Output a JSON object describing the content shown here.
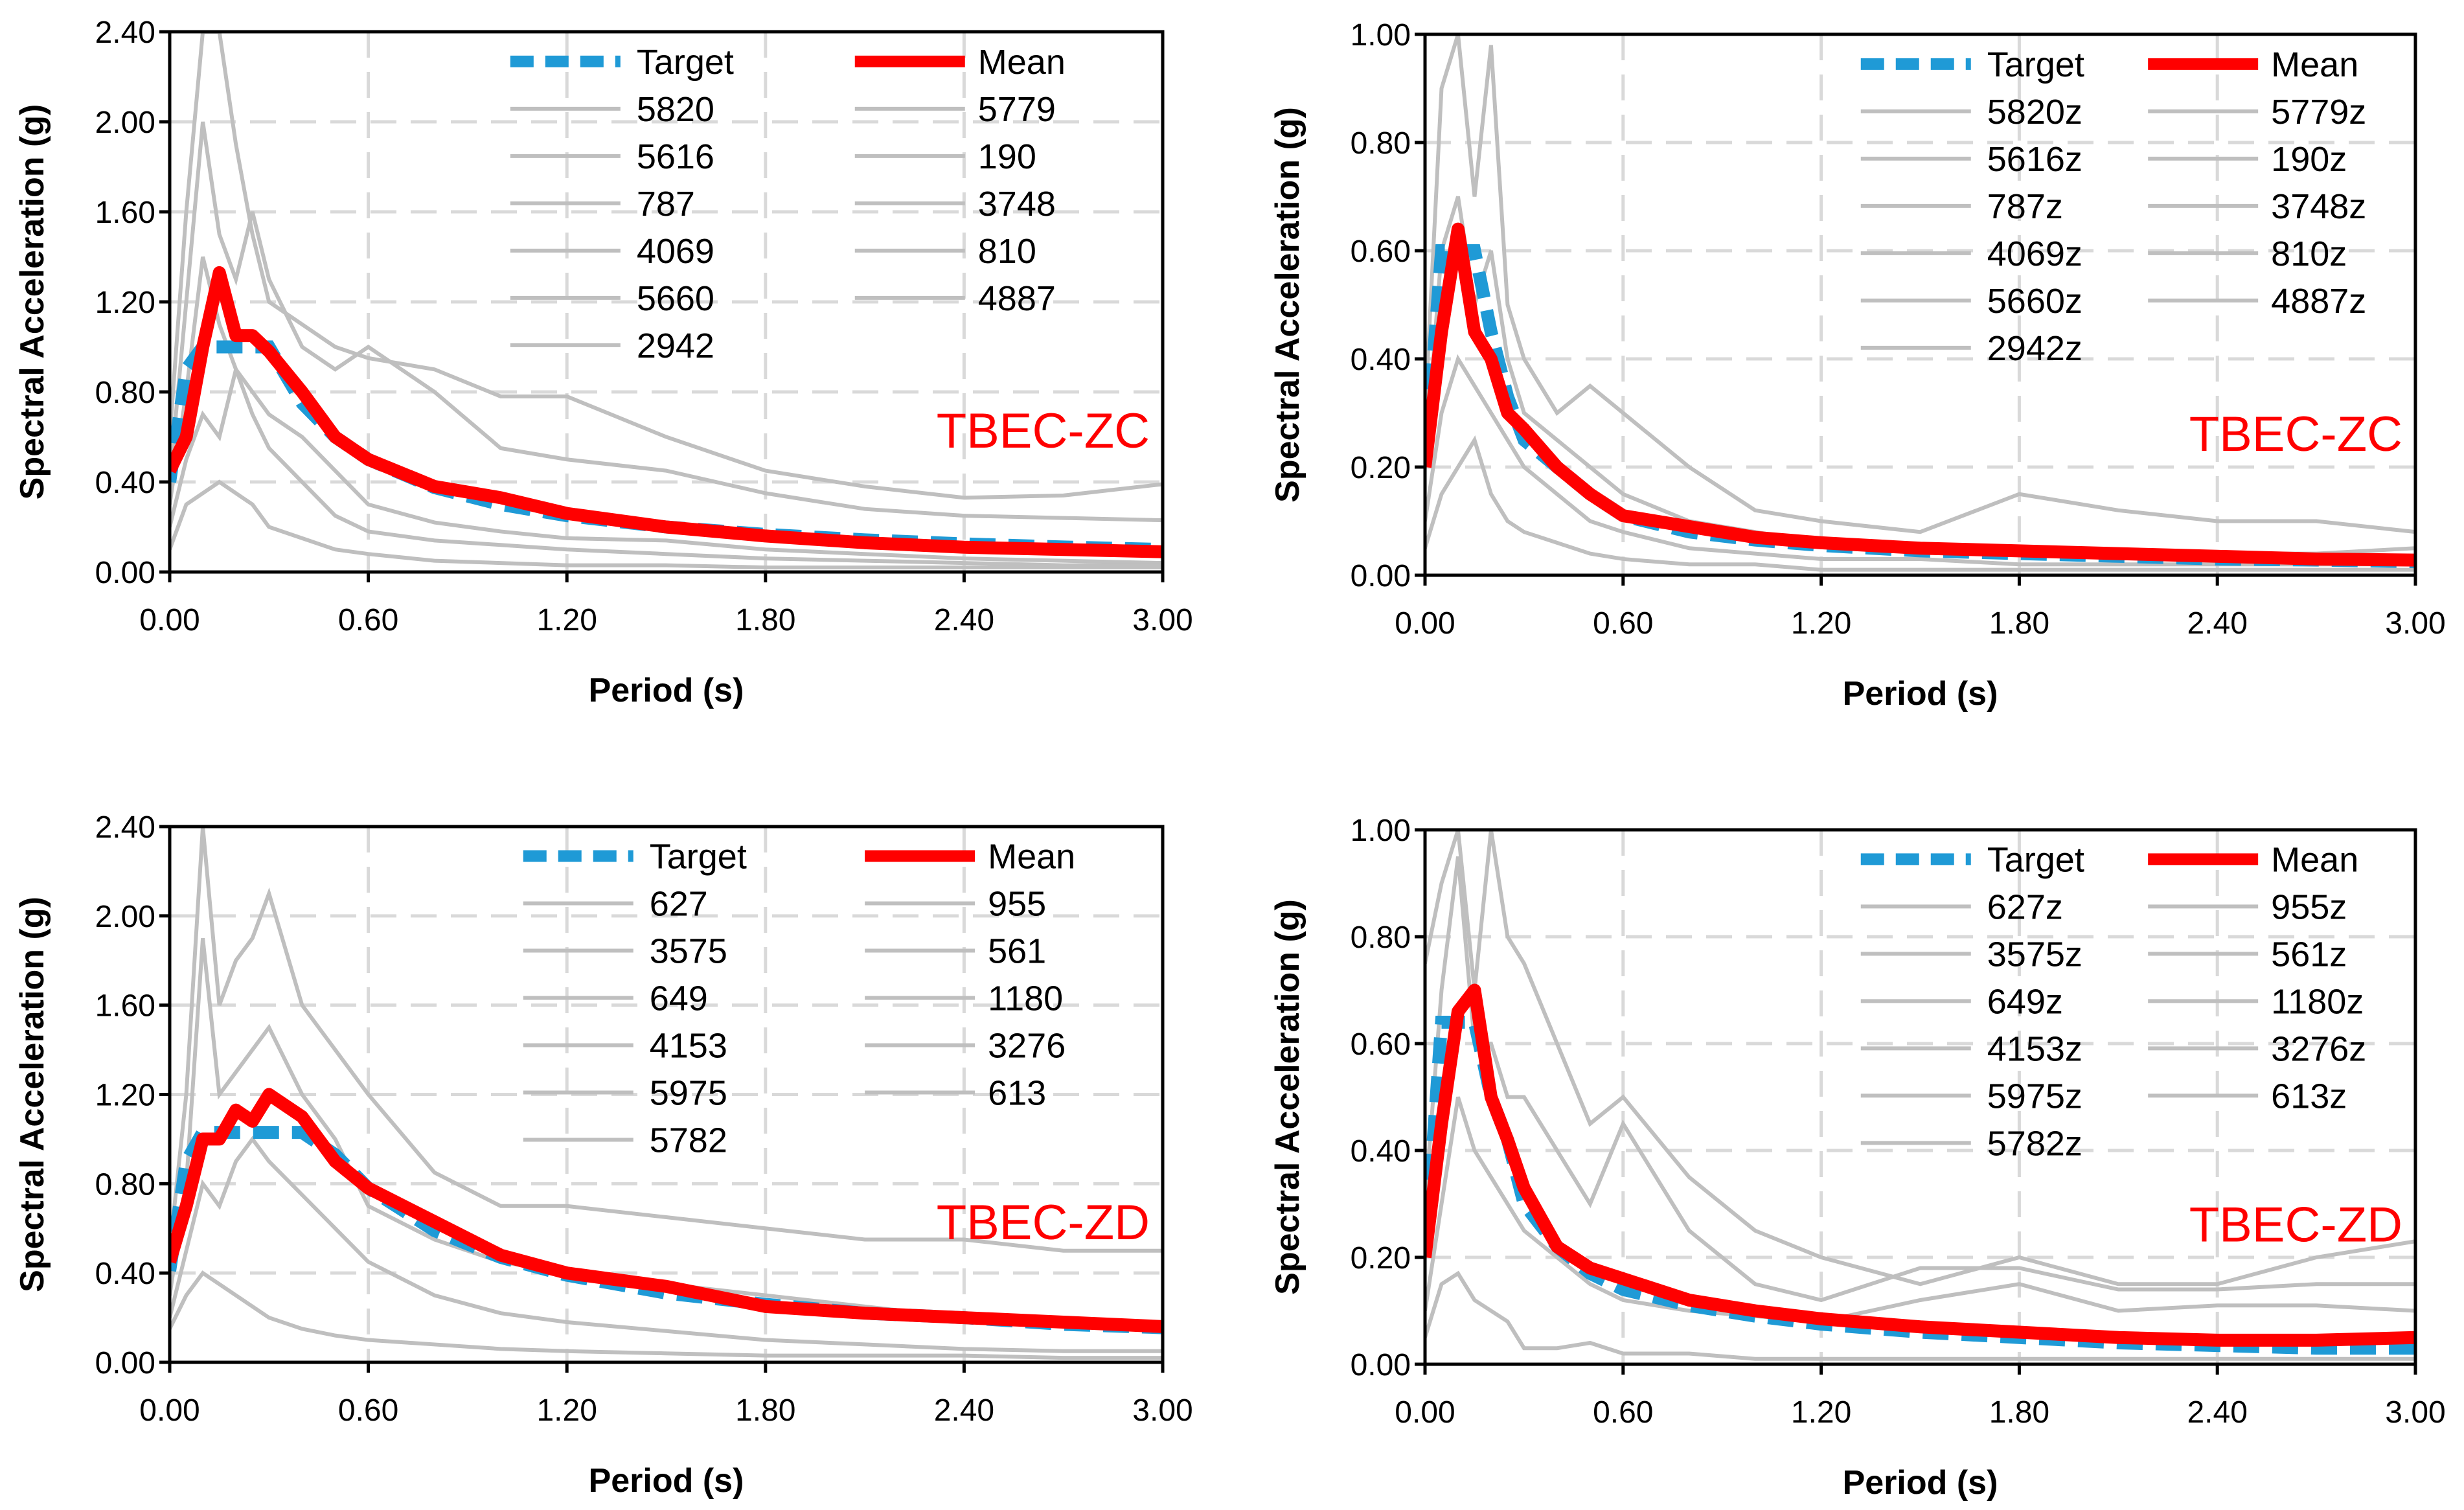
{
  "chart_data": [
    {
      "type": "line",
      "panel_label": "TBEC-ZC",
      "xlabel": "Period (s)",
      "ylabel": "Spectral Acceleration (g)",
      "xlim": [
        0,
        3.0
      ],
      "ylim": [
        0,
        2.4
      ],
      "xticks": [
        "0.00",
        "0.60",
        "1.20",
        "1.80",
        "2.40",
        "3.00"
      ],
      "yticks": [
        "0.00",
        "0.40",
        "0.80",
        "1.20",
        "1.60",
        "2.00",
        "2.40"
      ],
      "grid": true,
      "legend_position": "top-right",
      "legend": {
        "target": "Target",
        "mean": "Mean",
        "records": [
          "5820",
          "5779",
          "5616",
          "190",
          "787",
          "3748",
          "4069",
          "810",
          "5660",
          "4887",
          "2942"
        ]
      },
      "x": [
        0,
        0.05,
        0.1,
        0.15,
        0.2,
        0.25,
        0.3,
        0.4,
        0.5,
        0.6,
        0.8,
        1.0,
        1.2,
        1.5,
        1.8,
        2.1,
        2.4,
        2.7,
        3.0
      ],
      "series": [
        {
          "name": "Target",
          "values": [
            0.4,
            0.9,
            1.0,
            1.0,
            1.0,
            1.0,
            1.0,
            0.75,
            0.6,
            0.5,
            0.375,
            0.3,
            0.25,
            0.2,
            0.167,
            0.143,
            0.125,
            0.111,
            0.1
          ]
        },
        {
          "name": "Mean",
          "values": [
            0.45,
            0.6,
            1.0,
            1.33,
            1.05,
            1.05,
            0.98,
            0.8,
            0.6,
            0.5,
            0.38,
            0.33,
            0.26,
            0.2,
            0.16,
            0.13,
            0.11,
            0.1,
            0.09
          ]
        }
      ],
      "records_approx": [
        [
          0.6,
          1.6,
          2.4,
          2.4,
          1.9,
          1.5,
          1.2,
          1.1,
          1.0,
          0.95,
          0.9,
          0.78,
          0.78,
          0.6,
          0.45,
          0.38,
          0.33,
          0.34,
          0.39
        ],
        [
          0.4,
          1.2,
          2.0,
          1.5,
          1.3,
          1.6,
          1.3,
          1.0,
          0.9,
          1.0,
          0.8,
          0.55,
          0.5,
          0.45,
          0.35,
          0.28,
          0.25,
          0.24,
          0.23
        ],
        [
          0.3,
          0.8,
          1.4,
          1.1,
          0.9,
          0.8,
          0.7,
          0.6,
          0.45,
          0.3,
          0.22,
          0.18,
          0.15,
          0.14,
          0.1,
          0.08,
          0.06,
          0.05,
          0.04
        ],
        [
          0.1,
          0.3,
          0.35,
          0.4,
          0.35,
          0.3,
          0.2,
          0.15,
          0.1,
          0.08,
          0.05,
          0.04,
          0.03,
          0.03,
          0.02,
          0.02,
          0.02,
          0.02,
          0.02
        ],
        [
          0.2,
          0.5,
          0.7,
          0.6,
          0.9,
          0.7,
          0.55,
          0.4,
          0.25,
          0.18,
          0.14,
          0.12,
          0.1,
          0.08,
          0.06,
          0.05,
          0.04,
          0.03,
          0.03
        ]
      ]
    },
    {
      "type": "line",
      "panel_label": "TBEC-ZC",
      "xlabel": "Period (s)",
      "ylabel": "Spectral Acceleration (g)",
      "xlim": [
        0,
        3.0
      ],
      "ylim": [
        0,
        1.0
      ],
      "xticks": [
        "0.00",
        "0.60",
        "1.20",
        "1.80",
        "2.40",
        "3.00"
      ],
      "yticks": [
        "0.00",
        "0.20",
        "0.40",
        "0.60",
        "0.80",
        "1.00"
      ],
      "grid": true,
      "legend_position": "top-right",
      "legend": {
        "target": "Target",
        "mean": "Mean",
        "records": [
          "5820z",
          "5779z",
          "5616z",
          "190z",
          "787z",
          "3748z",
          "4069z",
          "810z",
          "5660z",
          "4887z",
          "2942z"
        ]
      },
      "x": [
        0,
        0.05,
        0.1,
        0.15,
        0.2,
        0.25,
        0.3,
        0.4,
        0.5,
        0.6,
        0.8,
        1.0,
        1.2,
        1.5,
        1.8,
        2.1,
        2.4,
        2.7,
        3.0
      ],
      "series": [
        {
          "name": "Target",
          "values": [
            0.2,
            0.6,
            0.6,
            0.6,
            0.45,
            0.33,
            0.25,
            0.2,
            0.15,
            0.11,
            0.08,
            0.065,
            0.055,
            0.045,
            0.04,
            0.035,
            0.03,
            0.028,
            0.025
          ]
        },
        {
          "name": "Mean",
          "values": [
            0.2,
            0.45,
            0.64,
            0.45,
            0.4,
            0.3,
            0.27,
            0.2,
            0.15,
            0.11,
            0.09,
            0.07,
            0.06,
            0.05,
            0.045,
            0.04,
            0.035,
            0.03,
            0.028
          ]
        }
      ],
      "records_approx": [
        [
          0.3,
          0.9,
          1.0,
          0.7,
          0.98,
          0.5,
          0.4,
          0.3,
          0.35,
          0.3,
          0.2,
          0.12,
          0.1,
          0.08,
          0.15,
          0.12,
          0.1,
          0.1,
          0.08
        ],
        [
          0.2,
          0.6,
          0.7,
          0.5,
          0.6,
          0.4,
          0.3,
          0.25,
          0.2,
          0.15,
          0.1,
          0.08,
          0.06,
          0.05,
          0.05,
          0.04,
          0.04,
          0.04,
          0.05
        ],
        [
          0.1,
          0.3,
          0.4,
          0.35,
          0.3,
          0.25,
          0.2,
          0.15,
          0.1,
          0.08,
          0.05,
          0.04,
          0.03,
          0.03,
          0.02,
          0.02,
          0.02,
          0.02,
          0.02
        ],
        [
          0.05,
          0.15,
          0.2,
          0.25,
          0.15,
          0.1,
          0.08,
          0.06,
          0.04,
          0.03,
          0.02,
          0.02,
          0.01,
          0.01,
          0.01,
          0.01,
          0.01,
          0.01,
          0.01
        ]
      ]
    },
    {
      "type": "line",
      "panel_label": "TBEC-ZD",
      "xlabel": "Period (s)",
      "ylabel": "Spectral Acceleration (g)",
      "xlim": [
        0,
        3.0
      ],
      "ylim": [
        0,
        2.4
      ],
      "xticks": [
        "0.00",
        "0.60",
        "1.20",
        "1.80",
        "2.40",
        "3.00"
      ],
      "yticks": [
        "0.00",
        "0.40",
        "0.80",
        "1.20",
        "1.60",
        "2.00",
        "2.40"
      ],
      "grid": true,
      "legend_position": "top-right",
      "legend": {
        "target": "Target",
        "mean": "Mean",
        "records": [
          "627",
          "955",
          "3575",
          "561",
          "649",
          "1180",
          "4153",
          "3276",
          "5975",
          "613",
          "5782"
        ]
      },
      "x": [
        0,
        0.05,
        0.1,
        0.15,
        0.2,
        0.25,
        0.3,
        0.4,
        0.5,
        0.6,
        0.8,
        1.0,
        1.2,
        1.5,
        1.8,
        2.1,
        2.4,
        2.7,
        3.0
      ],
      "series": [
        {
          "name": "Target",
          "values": [
            0.41,
            0.9,
            1.03,
            1.03,
            1.03,
            1.03,
            1.03,
            1.03,
            0.93,
            0.78,
            0.59,
            0.47,
            0.39,
            0.31,
            0.26,
            0.22,
            0.2,
            0.17,
            0.155
          ]
        },
        {
          "name": "Mean",
          "values": [
            0.45,
            0.7,
            1.0,
            1.0,
            1.13,
            1.08,
            1.2,
            1.1,
            0.9,
            0.78,
            0.63,
            0.48,
            0.4,
            0.34,
            0.25,
            0.22,
            0.2,
            0.18,
            0.16
          ]
        }
      ],
      "records_approx": [
        [
          0.5,
          1.2,
          2.4,
          1.6,
          1.8,
          1.9,
          2.1,
          1.6,
          1.4,
          1.2,
          0.85,
          0.7,
          0.7,
          0.65,
          0.6,
          0.55,
          0.55,
          0.5,
          0.5
        ],
        [
          0.3,
          0.8,
          1.9,
          1.2,
          1.3,
          1.4,
          1.5,
          1.2,
          1.0,
          0.7,
          0.55,
          0.45,
          0.4,
          0.35,
          0.3,
          0.25,
          0.2,
          0.18,
          0.15
        ],
        [
          0.2,
          0.5,
          0.8,
          0.7,
          0.9,
          1.0,
          0.9,
          0.75,
          0.6,
          0.45,
          0.3,
          0.22,
          0.18,
          0.14,
          0.1,
          0.08,
          0.06,
          0.05,
          0.05
        ],
        [
          0.15,
          0.3,
          0.4,
          0.35,
          0.3,
          0.25,
          0.2,
          0.15,
          0.12,
          0.1,
          0.08,
          0.06,
          0.05,
          0.04,
          0.03,
          0.03,
          0.03,
          0.02,
          0.02
        ]
      ]
    },
    {
      "type": "line",
      "panel_label": "TBEC-ZD",
      "xlabel": "Period (s)",
      "ylabel": "Spectral Acceleration (g)",
      "xlim": [
        0,
        3.0
      ],
      "ylim": [
        0,
        1.0
      ],
      "xticks": [
        "0.00",
        "0.60",
        "1.20",
        "1.80",
        "2.40",
        "3.00"
      ],
      "yticks": [
        "0.00",
        "0.20",
        "0.40",
        "0.60",
        "0.80",
        "1.00"
      ],
      "grid": true,
      "legend_position": "top-right",
      "legend": {
        "target": "Target",
        "mean": "Mean",
        "records": [
          "627z",
          "955z",
          "3575z",
          "561z",
          "649z",
          "1180z",
          "4153z",
          "3276z",
          "5975z",
          "613z",
          "5782z"
        ]
      },
      "x": [
        0,
        0.05,
        0.1,
        0.15,
        0.2,
        0.25,
        0.3,
        0.4,
        0.5,
        0.6,
        0.8,
        1.0,
        1.2,
        1.5,
        1.8,
        2.1,
        2.4,
        2.7,
        3.0
      ],
      "series": [
        {
          "name": "Target",
          "values": [
            0.2,
            0.64,
            0.64,
            0.64,
            0.5,
            0.42,
            0.3,
            0.22,
            0.17,
            0.14,
            0.11,
            0.09,
            0.075,
            0.06,
            0.05,
            0.04,
            0.035,
            0.03,
            0.03
          ]
        },
        {
          "name": "Mean",
          "values": [
            0.2,
            0.45,
            0.66,
            0.7,
            0.5,
            0.42,
            0.33,
            0.22,
            0.18,
            0.16,
            0.12,
            0.1,
            0.085,
            0.07,
            0.06,
            0.05,
            0.045,
            0.045,
            0.05
          ]
        }
      ],
      "records_approx": [
        [
          0.75,
          0.9,
          1.0,
          0.7,
          1.0,
          0.8,
          0.75,
          0.6,
          0.45,
          0.5,
          0.35,
          0.25,
          0.2,
          0.15,
          0.2,
          0.15,
          0.15,
          0.2,
          0.23
        ],
        [
          0.3,
          0.7,
          0.95,
          0.6,
          0.6,
          0.5,
          0.5,
          0.4,
          0.3,
          0.45,
          0.25,
          0.15,
          0.12,
          0.18,
          0.18,
          0.14,
          0.14,
          0.15,
          0.15
        ],
        [
          0.1,
          0.3,
          0.5,
          0.4,
          0.35,
          0.3,
          0.25,
          0.2,
          0.15,
          0.12,
          0.1,
          0.09,
          0.08,
          0.12,
          0.15,
          0.1,
          0.11,
          0.11,
          0.1
        ],
        [
          0.05,
          0.15,
          0.17,
          0.12,
          0.1,
          0.08,
          0.03,
          0.03,
          0.04,
          0.02,
          0.02,
          0.01,
          0.01,
          0.01,
          0.01,
          0.01,
          0.01,
          0.01,
          0.01
        ]
      ]
    }
  ]
}
